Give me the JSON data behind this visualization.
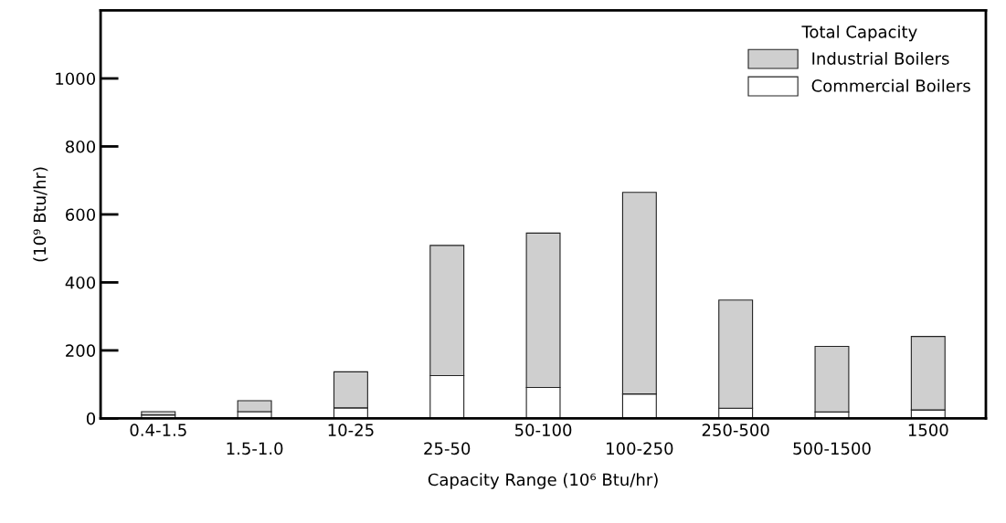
{
  "chart_data": {
    "type": "bar",
    "stacked": true,
    "xlabel": "Capacity Range (10⁶ Btu/hr)",
    "ylabel": "(10⁹ Btu/hr)",
    "legend_title": "Total Capacity",
    "legend": "top right",
    "grid": false,
    "categories": [
      "0.4-1.5",
      "1.5-1.0",
      "10-25",
      "25-50",
      "50-100",
      "100-250",
      "250-500",
      "500-1500",
      "1500"
    ],
    "series": [
      {
        "name": "Commercial Boilers",
        "color": "#ffffff",
        "values": [
          10,
          20,
          31,
          126,
          91,
          72,
          30,
          19,
          25
        ]
      },
      {
        "name": "Industrial Boilers",
        "color": "#cfcfcf",
        "values": [
          10,
          32,
          106,
          383,
          454,
          593,
          318,
          193,
          216
        ]
      }
    ],
    "ylim": [
      0,
      1200
    ],
    "yticks": [
      0,
      200,
      400,
      600,
      800,
      1000
    ]
  }
}
